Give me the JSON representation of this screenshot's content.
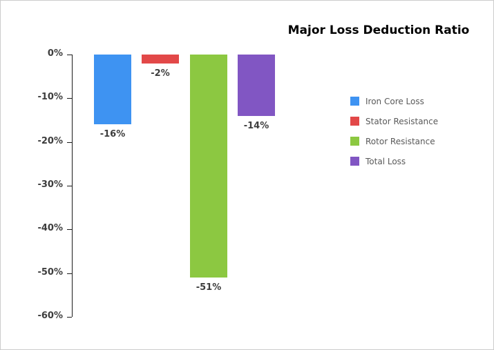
{
  "chart_data": {
    "type": "bar",
    "title": "Major Loss Deduction Ratio",
    "categories": [
      "Iron Core Loss",
      "Stator Resistance",
      "Rotor Resistance",
      "Total Loss"
    ],
    "values": [
      -16,
      -2,
      -51,
      -14
    ],
    "data_labels": [
      "-16%",
      "-2%",
      "-51%",
      "-14%"
    ],
    "series_colors": [
      "#3e93f2",
      "#e24848",
      "#8cc841",
      "#8156c3"
    ],
    "xlabel": "",
    "ylabel": "",
    "ylim": [
      -60,
      0
    ],
    "yticks": [
      0,
      -10,
      -20,
      -30,
      -40,
      -50,
      -60
    ],
    "ytick_labels": [
      "0%",
      "-10%",
      "-20%",
      "-30%",
      "-40%",
      "-50%",
      "-60%"
    ],
    "grid": false,
    "legend": {
      "position": "right",
      "entries": [
        {
          "label": "Iron Core Loss",
          "color": "#3e93f2"
        },
        {
          "label": "Stator Resistance",
          "color": "#e24848"
        },
        {
          "label": "Rotor Resistance",
          "color": "#8cc841"
        },
        {
          "label": "Total Loss",
          "color": "#8156c3"
        }
      ]
    }
  },
  "theme": {
    "background": "#ffffff",
    "frame_border": "#cccccc",
    "axis_color": "#1a1a1a",
    "label_color": "#3d3d3d",
    "legend_text_color": "#595959",
    "title_color": "#000000"
  }
}
